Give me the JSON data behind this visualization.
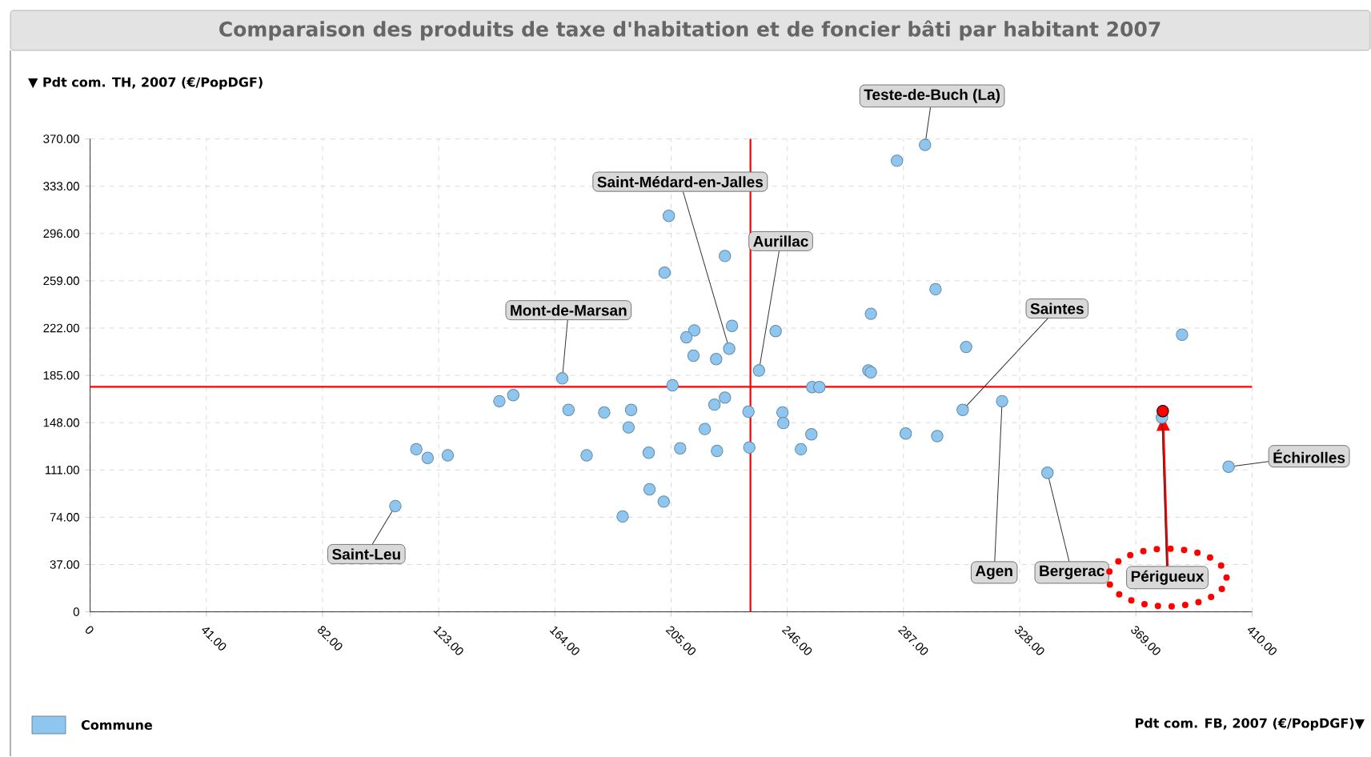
{
  "chart_data": {
    "type": "scatter",
    "title": "Comparaison des produits de taxe d'habitation et de foncier bâti par habitant 2007",
    "xlabel": "Pdt com. FB, 2007 (€/PopDGF)▼",
    "ylabel": "▼ Pdt com. TH, 2007 (€/PopDGF)",
    "xlim": [
      0,
      410
    ],
    "ylim": [
      0,
      370
    ],
    "xticks": [
      0,
      {
        "value": 41,
        "label": "41.00"
      },
      {
        "value": 82,
        "label": "82.00"
      },
      {
        "value": 123,
        "label": "123.00"
      },
      {
        "value": 164,
        "label": "164.00"
      },
      {
        "value": 205,
        "label": "205.00"
      },
      {
        "value": 246,
        "label": "246.00"
      },
      {
        "value": 287,
        "label": "287.00"
      },
      {
        "value": 328,
        "label": "328.00"
      },
      {
        "value": 369,
        "label": "369.00"
      },
      {
        "value": 410,
        "label": "410.00"
      }
    ],
    "yticks": [
      0,
      {
        "value": 37,
        "label": "37.00"
      },
      {
        "value": 74,
        "label": "74.00"
      },
      {
        "value": 111,
        "label": "111.00"
      },
      {
        "value": 148,
        "label": "148.00"
      },
      {
        "value": 185,
        "label": "185.00"
      },
      {
        "value": 222,
        "label": "222.00"
      },
      {
        "value": 259,
        "label": "259.00"
      },
      {
        "value": 296,
        "label": "296.00"
      },
      {
        "value": 333,
        "label": "333.00"
      },
      {
        "value": 370,
        "label": "370.00"
      }
    ],
    "grid": true,
    "legend": "bottom left",
    "series": [
      {
        "name": "Commune",
        "color": "#8ec6f0",
        "x": [
          294.6,
          284.7,
          204.2,
          224,
          202.7,
          298.3,
          275.5,
          226.5,
          213.2,
          210.4,
          241.9,
          385.3,
          309.1,
          225.5,
          212.9,
          220.9,
          236,
          274.6,
          275.5,
          166.6,
          205.5,
          254.8,
          257.3,
          149.3,
          144.4,
          224,
          220.3,
          321.8,
          168.8,
          181.4,
          190.9,
          232.3,
          244.3,
          307.9,
          244.6,
          190,
          216.9,
          287.8,
          254.5,
          298.9,
          115.1,
          119.1,
          126.2,
          175.2,
          197.1,
          208.2,
          221.2,
          232.6,
          250.8,
          401.7,
          337.8,
          197.4,
          202.4,
          187.9,
          107.7,
          378.2
        ],
        "values": [
          365.3,
          352.9,
          309.8,
          278.4,
          265.4,
          252.4,
          233.2,
          223.7,
          220.2,
          214.8,
          219.6,
          216.8,
          207.2,
          205.9,
          200.4,
          197.7,
          188.8,
          188.8,
          187.4,
          182.6,
          177.2,
          175.8,
          175.8,
          169.6,
          164.8,
          167.6,
          162.1,
          164.8,
          158,
          156,
          158,
          156.6,
          156,
          158,
          147.7,
          144.3,
          143,
          139.5,
          138.9,
          137.5,
          127.2,
          120.4,
          122.4,
          122.4,
          124.5,
          127.9,
          125.9,
          128.6,
          127.2,
          113.5,
          108.8,
          95.8,
          86.2,
          74.6,
          82.8,
          152
        ]
      },
      {
        "color": "#ff0000",
        "x": [
          378.5
        ],
        "values": [
          157
        ]
      }
    ],
    "ref_lines": [
      {
        "axis": "x",
        "value": 233,
        "color": "#ff0000"
      },
      {
        "axis": "y",
        "value": 176,
        "color": "#ff0000"
      }
    ],
    "annotations": [
      {
        "text": "Teste-de-Buch (La)",
        "x": 294.6,
        "y": 365.3
      },
      {
        "text": "Saint-Médard-en-Jalles",
        "x": 225.5,
        "y": 205.9
      },
      {
        "text": "Aurillac",
        "x": 236,
        "y": 188.8
      },
      {
        "text": "Mont-de-Marsan",
        "x": 166.6,
        "y": 182.6
      },
      {
        "text": "Saintes",
        "x": 307.9,
        "y": 158
      },
      {
        "text": "Échirolles",
        "x": 401.7,
        "y": 113.5
      },
      {
        "text": "Saint-Leu",
        "x": 107.7,
        "y": 82.8
      },
      {
        "text": "Agen",
        "x": 321.8,
        "y": 164.8
      },
      {
        "text": "Bergerac",
        "x": 337.8,
        "y": 108.8
      },
      {
        "text": "Périgueux",
        "x": 378.2,
        "y": 152
      }
    ]
  }
}
